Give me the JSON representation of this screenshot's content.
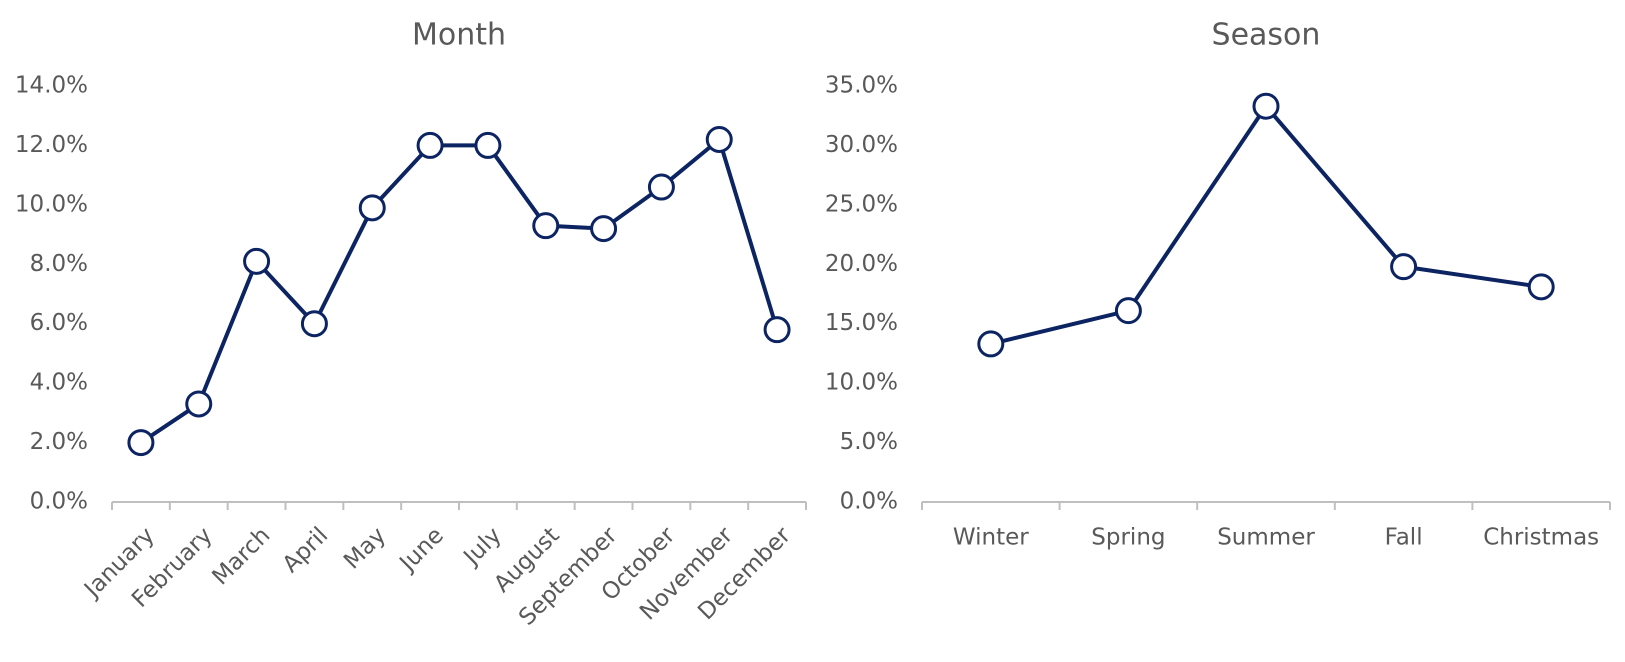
{
  "chart_data": [
    {
      "type": "line",
      "title": "Month",
      "categories": [
        "January",
        "February",
        "March",
        "April",
        "May",
        "June",
        "July",
        "August",
        "September",
        "October",
        "November",
        "December"
      ],
      "values": [
        2.0,
        3.3,
        8.1,
        6.0,
        9.9,
        12.0,
        12.0,
        9.3,
        9.2,
        10.6,
        12.2,
        5.8
      ],
      "color": "#0d2463",
      "rotate_labels": true,
      "ylim": [
        0,
        14
      ],
      "yticks": [
        {
          "value": 0,
          "label": "0.0%"
        },
        {
          "value": 2,
          "label": "2.0%"
        },
        {
          "value": 4,
          "label": "4.0%"
        },
        {
          "value": 6,
          "label": "6.0%"
        },
        {
          "value": 8,
          "label": "8.0%"
        },
        {
          "value": 10,
          "label": "10.0%"
        },
        {
          "value": 12,
          "label": "12.0%"
        },
        {
          "value": 14,
          "label": "14.0%"
        }
      ]
    },
    {
      "type": "line",
      "title": "Season",
      "categories": [
        "Winter",
        "Spring",
        "Summer",
        "Fall",
        "Christmas"
      ],
      "values": [
        13.3,
        16.1,
        33.3,
        19.8,
        18.1
      ],
      "color": "#0d2463",
      "rotate_labels": false,
      "ylim": [
        0,
        35
      ],
      "yticks": [
        {
          "value": 0,
          "label": "0.0%"
        },
        {
          "value": 5,
          "label": "5.0%"
        },
        {
          "value": 10,
          "label": "10.0%"
        },
        {
          "value": 15,
          "label": "15.0%"
        },
        {
          "value": 20,
          "label": "20.0%"
        },
        {
          "value": 25,
          "label": "25.0%"
        },
        {
          "value": 30,
          "label": "30.0%"
        },
        {
          "value": 35,
          "label": "35.0%"
        }
      ]
    }
  ]
}
